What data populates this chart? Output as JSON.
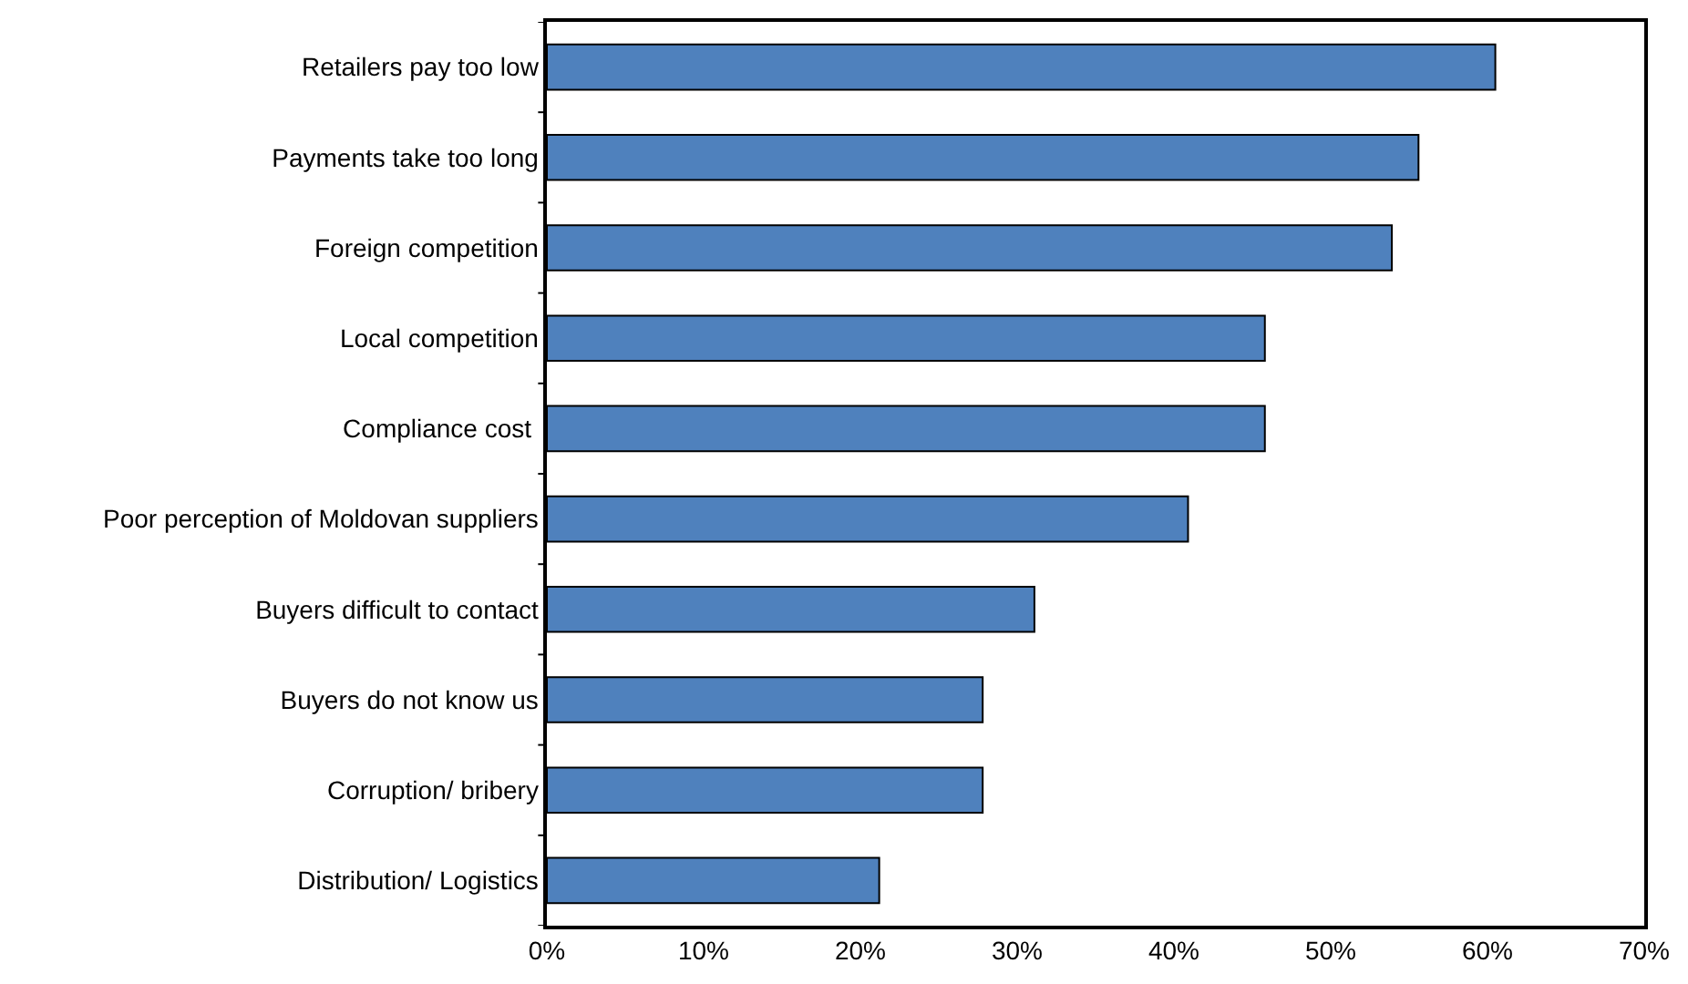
{
  "chart_data": {
    "type": "bar",
    "orientation": "horizontal",
    "categories": [
      "Retailers pay too low",
      "Payments take too long",
      "Foreign competition",
      "Local competition",
      "Compliance cost ",
      "Poor perception of Moldovan suppliers",
      "Buyers difficult to contact",
      "Buyers do not know us",
      "Corruption/ bribery",
      "Distribution/ Logistics"
    ],
    "values": [
      60.5,
      55.6,
      53.9,
      45.8,
      45.8,
      40.9,
      31.1,
      27.8,
      27.8,
      21.2
    ],
    "color": "#4f81bd",
    "xlim": [
      0,
      70
    ],
    "xticks": [
      {
        "value": 0,
        "label": "0%"
      },
      {
        "value": 10,
        "label": "10%"
      },
      {
        "value": 20,
        "label": "20%"
      },
      {
        "value": 30,
        "label": "30%"
      },
      {
        "value": 40,
        "label": "40%"
      },
      {
        "value": 50,
        "label": "50%"
      },
      {
        "value": 60,
        "label": "60%"
      },
      {
        "value": 70,
        "label": "70%"
      }
    ],
    "legend": false
  }
}
